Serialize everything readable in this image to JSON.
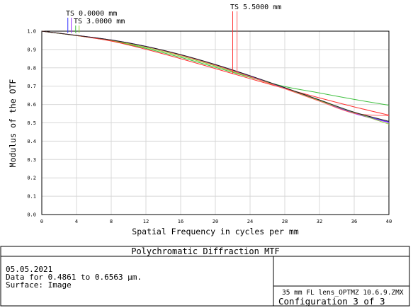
{
  "chart_data": {
    "type": "line",
    "title": "Polychromatic Diffraction MTF",
    "xlabel": "Spatial Frequency in cycles per mm",
    "ylabel": "Modulus of the OTF",
    "xlim": [
      0,
      40
    ],
    "ylim": [
      0,
      1.0
    ],
    "x_ticks": [
      "0",
      "4",
      "8",
      "12",
      "16",
      "20",
      "24",
      "28",
      "32",
      "36",
      "40"
    ],
    "y_ticks": [
      "0.0",
      "0.1",
      "0.2",
      "0.3",
      "0.4",
      "0.5",
      "0.6",
      "0.7",
      "0.8",
      "0.9",
      "1.0"
    ],
    "grid": true,
    "legend": [
      {
        "label": "TS 0.0000 mm",
        "colors": [
          "#3030ff",
          "#9b30ff"
        ],
        "x_marks": [
          3.0,
          3.4
        ]
      },
      {
        "label": "TS 3.0000 mm",
        "colors": [
          "#40c040",
          "#90d030"
        ],
        "x_marks": [
          3.9,
          4.3
        ]
      },
      {
        "label": "TS 5.5000 mm",
        "colors": [
          "#ff3030",
          "#ff6060"
        ],
        "x_marks": [
          22.0,
          22.5
        ]
      }
    ],
    "x": [
      0,
      4,
      8,
      12,
      16,
      20,
      24,
      28,
      32,
      36,
      40
    ],
    "series": [
      {
        "color": "#3030ff",
        "values": [
          1.0,
          0.977,
          0.952,
          0.917,
          0.871,
          0.817,
          0.756,
          0.69,
          0.622,
          0.553,
          0.504
        ]
      },
      {
        "color": "#9b30ff",
        "values": [
          1.0,
          0.977,
          0.951,
          0.916,
          0.87,
          0.815,
          0.753,
          0.687,
          0.619,
          0.551,
          0.502
        ]
      },
      {
        "color": "#40c040",
        "values": [
          1.0,
          0.976,
          0.947,
          0.906,
          0.857,
          0.803,
          0.748,
          0.698,
          0.663,
          0.628,
          0.596
        ]
      },
      {
        "color": "#90d030",
        "values": [
          1.0,
          0.976,
          0.949,
          0.911,
          0.864,
          0.81,
          0.75,
          0.687,
          0.621,
          0.556,
          0.493
        ]
      },
      {
        "color": "#ff3030",
        "values": [
          1.0,
          0.976,
          0.946,
          0.901,
          0.85,
          0.796,
          0.741,
          0.687,
          0.636,
          0.587,
          0.542
        ]
      },
      {
        "color": "#ff6060",
        "values": [
          1.0,
          0.977,
          0.951,
          0.916,
          0.869,
          0.814,
          0.752,
          0.686,
          0.618,
          0.552,
          0.539
        ]
      },
      {
        "color": "#202020",
        "values": [
          1.0,
          0.977,
          0.952,
          0.917,
          0.872,
          0.818,
          0.757,
          0.692,
          0.625,
          0.558,
          0.508
        ]
      }
    ]
  },
  "info": {
    "date": "05.05.2021",
    "data_range": "Data for 0.4861 to 0.6563 µm.",
    "surface": "Surface: Image",
    "file": "35 mm FL lens_OPTMZ 10.6.9.ZMX",
    "configuration": "Configuration 3 of 3"
  }
}
